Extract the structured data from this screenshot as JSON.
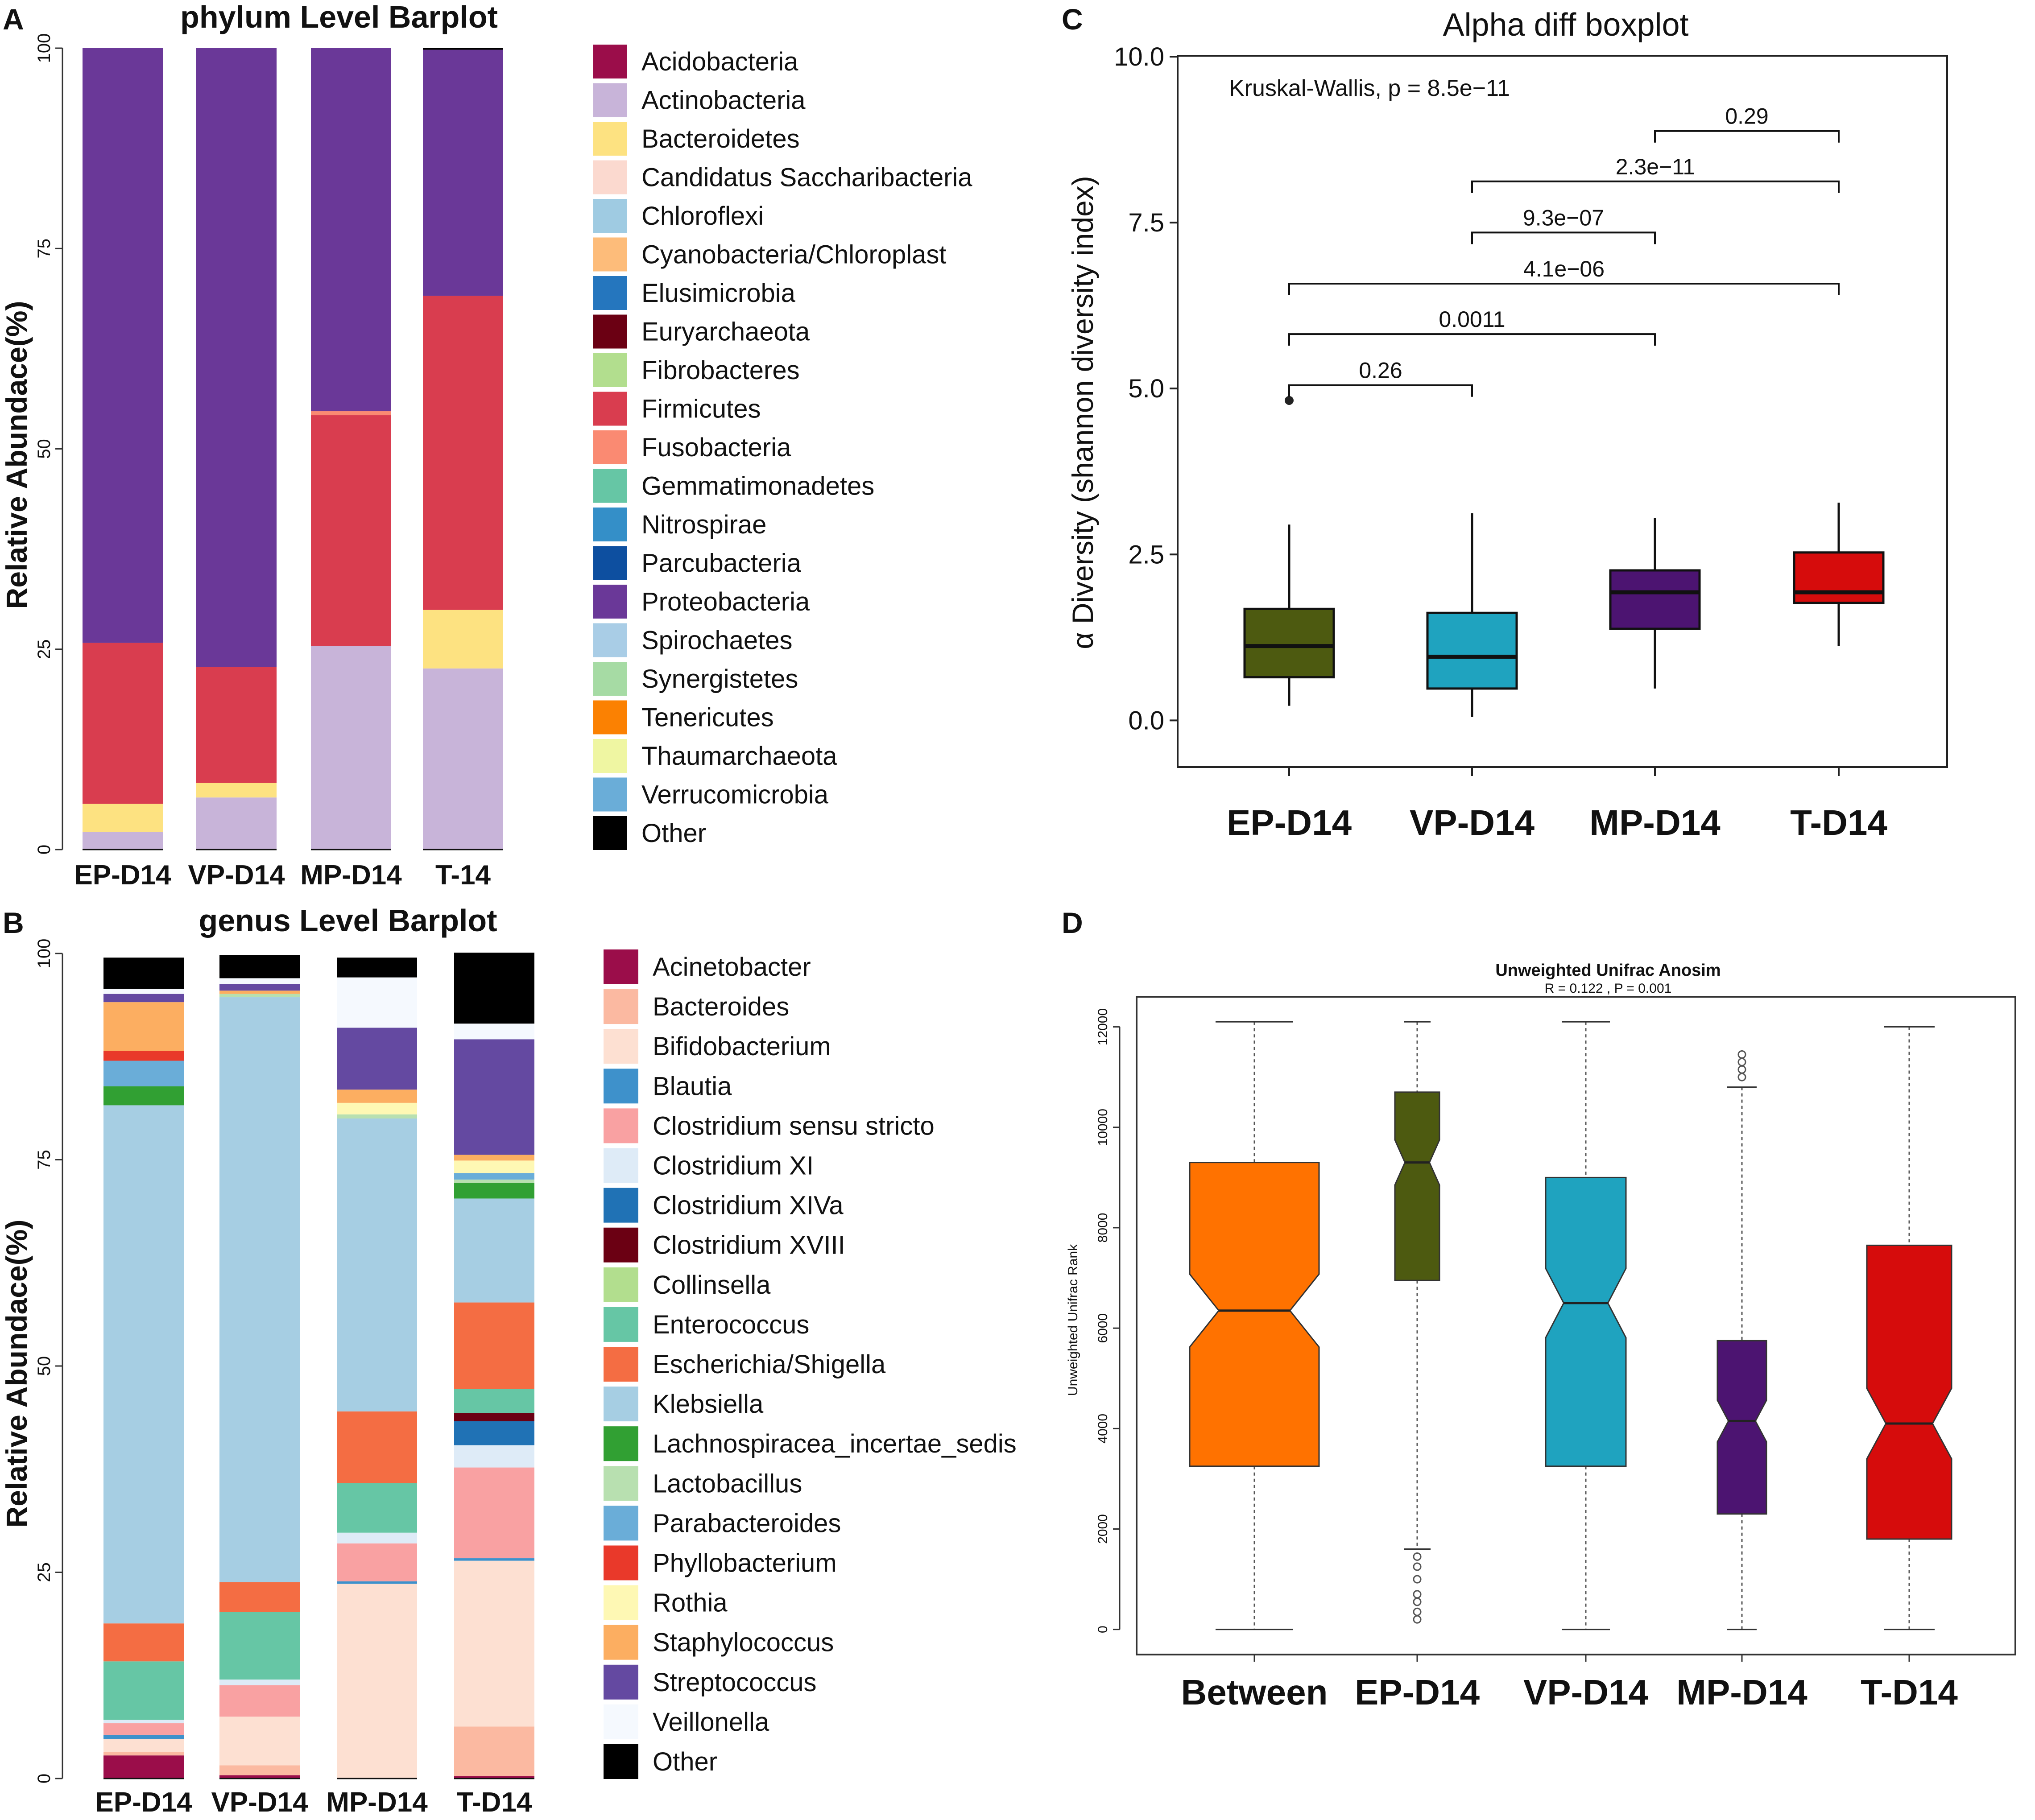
{
  "figure": {
    "panelA": {
      "panel_label": "A",
      "chart_data": {
        "type": "bar",
        "stacked": true,
        "title": "phylum Level Barplot",
        "ylabel": "Relative Abundace(%)",
        "ylim": [
          0,
          100
        ],
        "yticks": [
          "0",
          "25",
          "50",
          "75",
          "100"
        ],
        "categories": [
          "EP-D14",
          "VP-D14",
          "MP-D14",
          "T-14"
        ],
        "series": [
          {
            "name": "Acidobacteria",
            "color": "#9B0D4A",
            "values": [
              0,
              0,
              0,
              0
            ]
          },
          {
            "name": "Actinobacteria",
            "color": "#C8B4D9",
            "values": [
              2.2,
              6.5,
              25.4,
              22.6
            ]
          },
          {
            "name": "Bacteroidetes",
            "color": "#FDE281",
            "values": [
              3.5,
              1.8,
              0,
              7.3
            ]
          },
          {
            "name": "Candidatus Saccharibacteria",
            "color": "#FBD9CF",
            "values": [
              0,
              0,
              0,
              0
            ]
          },
          {
            "name": "Chloroflexi",
            "color": "#9FCBE2",
            "values": [
              0,
              0,
              0,
              0
            ]
          },
          {
            "name": "Cyanobacteria/Chloroplast",
            "color": "#FDBC7A",
            "values": [
              0,
              0,
              0,
              0
            ]
          },
          {
            "name": "Elusimicrobia",
            "color": "#2576BE",
            "values": [
              0,
              0,
              0,
              0
            ]
          },
          {
            "name": "Euryarchaeota",
            "color": "#6B0013",
            "values": [
              0,
              0,
              0,
              0
            ]
          },
          {
            "name": "Fibrobacteres",
            "color": "#B2DE8E",
            "values": [
              0,
              0,
              0,
              0
            ]
          },
          {
            "name": "Firmicutes",
            "color": "#D93D4F",
            "values": [
              20.1,
              14.5,
              28.8,
              39.2
            ]
          },
          {
            "name": "Fusobacteria",
            "color": "#FA8A72",
            "values": [
              0,
              0,
              0.5,
              0
            ]
          },
          {
            "name": "Gemmatimonadetes",
            "color": "#66C6A5",
            "values": [
              0,
              0,
              0,
              0
            ]
          },
          {
            "name": "Nitrospirae",
            "color": "#348FC8",
            "values": [
              0,
              0,
              0,
              0
            ]
          },
          {
            "name": "Parcubacteria",
            "color": "#0D4FA0",
            "values": [
              0,
              0,
              0,
              0
            ]
          },
          {
            "name": "Proteobacteria",
            "color": "#6A3898",
            "values": [
              74.2,
              77.2,
              45.3,
              30.7
            ]
          },
          {
            "name": "Spirochaetes",
            "color": "#A9CDE6",
            "values": [
              0,
              0,
              0,
              0
            ]
          },
          {
            "name": "Synergistetes",
            "color": "#A6DBA4",
            "values": [
              0,
              0,
              0,
              0
            ]
          },
          {
            "name": "Tenericutes",
            "color": "#FB8102",
            "values": [
              0,
              0,
              0,
              0
            ]
          },
          {
            "name": "Thaumarchaeota",
            "color": "#EFF6A2",
            "values": [
              0,
              0,
              0,
              0
            ]
          },
          {
            "name": "Verrucomicrobia",
            "color": "#6AADD8",
            "values": [
              0,
              0,
              0,
              0
            ]
          },
          {
            "name": "Other",
            "color": "#000000",
            "values": [
              0,
              0,
              0,
              0.2
            ]
          }
        ]
      }
    },
    "panelB": {
      "panel_label": "B",
      "chart_data": {
        "type": "bar",
        "stacked": true,
        "title": "genus Level Barplot",
        "ylabel": "Relative Abundace(%)",
        "ylim": [
          0,
          100
        ],
        "yticks": [
          "0",
          "25",
          "50",
          "75",
          "100"
        ],
        "categories": [
          "EP-D14",
          "VP-D14",
          "MP-D14",
          "T-D14"
        ],
        "series": [
          {
            "name": "Acinetobacter",
            "color": "#9B0D4A",
            "values": [
              2.8,
              0.4,
              0,
              0.3
            ]
          },
          {
            "name": "Bacteroides",
            "color": "#FBB9A1",
            "values": [
              0.4,
              1.2,
              0,
              6.0
            ]
          },
          {
            "name": "Bifidobacterium",
            "color": "#FDE0D2",
            "values": [
              1.6,
              5.9,
              23.6,
              20.1
            ]
          },
          {
            "name": "Blautia",
            "color": "#3E91CB",
            "values": [
              0.5,
              0,
              0.3,
              0.3
            ]
          },
          {
            "name": "Clostridium sensu stricto",
            "color": "#F9A1A2",
            "values": [
              1.4,
              3.8,
              4.6,
              11.0
            ]
          },
          {
            "name": "Clostridium XI",
            "color": "#DEEBF7",
            "values": [
              0.4,
              0.7,
              1.3,
              2.7
            ]
          },
          {
            "name": "Clostridium XIVa",
            "color": "#2072B5",
            "values": [
              0,
              0,
              0,
              2.9
            ]
          },
          {
            "name": "Clostridium XVIII",
            "color": "#6B0013",
            "values": [
              0,
              0,
              0,
              1.0
            ]
          },
          {
            "name": "Collinsella",
            "color": "#B2DE8E",
            "values": [
              0,
              0,
              0,
              0
            ]
          },
          {
            "name": "Enterococcus",
            "color": "#66C6A5",
            "values": [
              7.1,
              8.2,
              6.0,
              2.9
            ]
          },
          {
            "name": "Escherichia/Shigella",
            "color": "#F46D43",
            "values": [
              4.6,
              3.6,
              8.7,
              10.5
            ]
          },
          {
            "name": "Klebsiella",
            "color": "#A6CEE3",
            "values": [
              62.8,
              70.9,
              35.5,
              12.6
            ]
          },
          {
            "name": "Lachnospiracea_incertae_sedis",
            "color": "#31A033",
            "values": [
              2.3,
              0,
              0,
              1.9
            ]
          },
          {
            "name": "Lactobacillus",
            "color": "#B8E0B0",
            "values": [
              0,
              0.4,
              0.5,
              0.4
            ]
          },
          {
            "name": "Parabacteroides",
            "color": "#6AADD8",
            "values": [
              3.1,
              0,
              0,
              0.8
            ]
          },
          {
            "name": "Phyllobacterium",
            "color": "#E9392A",
            "values": [
              1.2,
              0,
              0,
              0
            ]
          },
          {
            "name": "Rothia",
            "color": "#FEF8B4",
            "values": [
              0,
              0,
              1.4,
              1.5
            ]
          },
          {
            "name": "Staphylococcus",
            "color": "#FCAE61",
            "values": [
              5.9,
              0.4,
              1.6,
              0.7
            ]
          },
          {
            "name": "Streptococcus",
            "color": "#6449A1",
            "values": [
              1.0,
              0.8,
              7.5,
              14.0
            ]
          },
          {
            "name": "Veillonella",
            "color": "#F5F9FE",
            "values": [
              0.6,
              0.7,
              6.1,
              1.9
            ]
          },
          {
            "name": "Other",
            "color": "#000000",
            "values": [
              3.8,
              2.8,
              2.4,
              8.6
            ]
          }
        ]
      }
    },
    "panelC": {
      "panel_label": "C",
      "chart_data": {
        "type": "box",
        "title": "Alpha diff boxplot",
        "ylabel": "α Diversity (shannon diversity index)",
        "ylim": [
          -0.3,
          10.0
        ],
        "yticks": [
          "0.0",
          "2.5",
          "5.0",
          "7.5",
          "10.0"
        ],
        "categories": [
          "EP-D14",
          "VP-D14",
          "MP-D14",
          "T-D14"
        ],
        "annotation": "Kruskal-Wallis, p = 8.5e−11",
        "boxes": [
          {
            "group": "EP-D14",
            "color": "#4D5A10",
            "min": 0.22,
            "q1": 0.65,
            "median": 1.12,
            "q3": 1.68,
            "max": 2.95,
            "outliers": [
              4.82
            ]
          },
          {
            "group": "VP-D14",
            "color": "#1FA3BF",
            "min": 0.05,
            "q1": 0.48,
            "median": 0.96,
            "q3": 1.62,
            "max": 3.12,
            "outliers": []
          },
          {
            "group": "MP-D14",
            "color": "#4C1471",
            "min": 0.48,
            "q1": 1.38,
            "median": 1.93,
            "q3": 2.26,
            "max": 3.05,
            "outliers": []
          },
          {
            "group": "T-D14",
            "color": "#D60C0C",
            "min": 1.12,
            "q1": 1.77,
            "median": 1.93,
            "q3": 2.53,
            "max": 3.28,
            "outliers": []
          }
        ],
        "comparisons": [
          {
            "from": "EP-D14",
            "to": "VP-D14",
            "label": "0.26",
            "y": 5.05
          },
          {
            "from": "EP-D14",
            "to": "MP-D14",
            "label": "0.0011",
            "y": 5.82
          },
          {
            "from": "EP-D14",
            "to": "T-D14",
            "label": "4.1e−06",
            "y": 6.58
          },
          {
            "from": "VP-D14",
            "to": "MP-D14",
            "label": "9.3e−07",
            "y": 7.35
          },
          {
            "from": "VP-D14",
            "to": "T-D14",
            "label": "2.3e−11",
            "y": 8.12
          },
          {
            "from": "MP-D14",
            "to": "T-D14",
            "label": "0.29",
            "y": 8.88
          }
        ]
      }
    },
    "panelD": {
      "panel_label": "D",
      "chart_data": {
        "type": "box",
        "notched": true,
        "title": "Unweighted Unifrac Anosim",
        "subtitle": "R =  0.122 ,  P =  0.001",
        "ylabel": "Unweighted Unifrac Rank",
        "ylim": [
          -500,
          12600
        ],
        "yticks": [
          "0",
          "2000",
          "4000",
          "6000",
          "8000",
          "10000",
          "12000"
        ],
        "categories": [
          "Between",
          "EP-D14",
          "VP-D14",
          "MP-D14",
          "T-D14"
        ],
        "boxes": [
          {
            "group": "Between",
            "color": "#FF7200",
            "min": 0,
            "q1": 3250,
            "median": 6350,
            "q3": 9300,
            "max": 12100,
            "outliers": []
          },
          {
            "group": "EP-D14",
            "color": "#4D5A10",
            "min": 1600,
            "q1": 6950,
            "median": 9300,
            "q3": 10700,
            "max": 12100,
            "outliers": [
              1450,
              1250,
              1000,
              700,
              550,
              350,
              200
            ]
          },
          {
            "group": "VP-D14",
            "color": "#1FA3BF",
            "min": 0,
            "q1": 3250,
            "median": 6500,
            "q3": 9000,
            "max": 12100,
            "outliers": []
          },
          {
            "group": "MP-D14",
            "color": "#4C1471",
            "min": 0,
            "q1": 2300,
            "median": 4150,
            "q3": 5750,
            "max": 10800,
            "outliers": [
              11000,
              11150,
              11300,
              11450
            ]
          },
          {
            "group": "T-D14",
            "color": "#D60C0C",
            "min": 0,
            "q1": 1800,
            "median": 4100,
            "q3": 7650,
            "max": 12000,
            "outliers": []
          }
        ]
      }
    }
  }
}
